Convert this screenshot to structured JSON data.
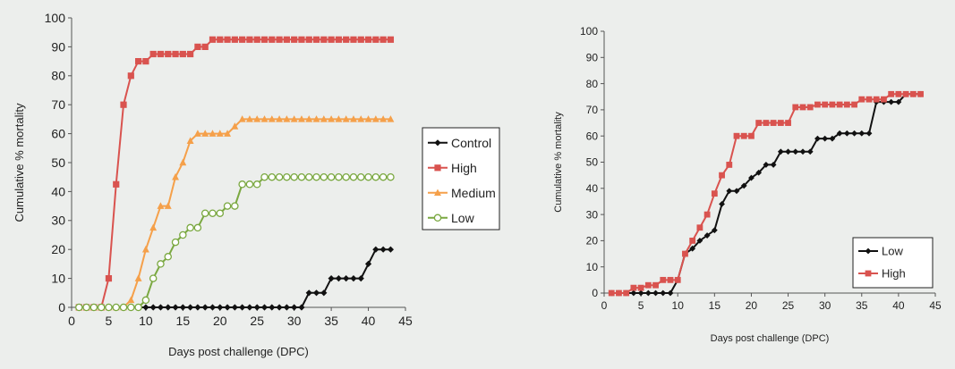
{
  "chart_data": [
    {
      "type": "line",
      "xlabel": "Days post challenge (DPC)",
      "ylabel": "Cumulative % mortality",
      "xlim": [
        0,
        45
      ],
      "ylim": [
        0,
        100
      ],
      "xticks": [
        0,
        5,
        10,
        15,
        20,
        25,
        30,
        35,
        40,
        45
      ],
      "yticks": [
        0,
        10,
        20,
        30,
        40,
        50,
        60,
        70,
        80,
        90,
        100
      ],
      "legend_position": "right",
      "series": [
        {
          "name": "Control",
          "color": "#111111",
          "marker": "diamond",
          "x": [
            1,
            2,
            3,
            4,
            5,
            6,
            7,
            8,
            9,
            10,
            11,
            12,
            13,
            14,
            15,
            16,
            17,
            18,
            19,
            20,
            21,
            22,
            23,
            24,
            25,
            26,
            27,
            28,
            29,
            30,
            31,
            32,
            33,
            34,
            35,
            36,
            37,
            38,
            39,
            40,
            41,
            42,
            43
          ],
          "y": [
            0,
            0,
            0,
            0,
            0,
            0,
            0,
            0,
            0,
            0,
            0,
            0,
            0,
            0,
            0,
            0,
            0,
            0,
            0,
            0,
            0,
            0,
            0,
            0,
            0,
            0,
            0,
            0,
            0,
            0,
            0,
            5,
            5,
            5,
            10,
            10,
            10,
            10,
            10,
            15,
            20,
            20,
            20
          ]
        },
        {
          "name": "High",
          "color": "#d9534f",
          "marker": "square",
          "x": [
            1,
            2,
            3,
            4,
            5,
            6,
            7,
            8,
            9,
            10,
            11,
            12,
            13,
            14,
            15,
            16,
            17,
            18,
            19,
            20,
            21,
            22,
            23,
            24,
            25,
            26,
            27,
            28,
            29,
            30,
            31,
            32,
            33,
            34,
            35,
            36,
            37,
            38,
            39,
            40,
            41,
            42,
            43
          ],
          "y": [
            0,
            0,
            0,
            0,
            10,
            42.5,
            70,
            80,
            85,
            85,
            87.5,
            87.5,
            87.5,
            87.5,
            87.5,
            87.5,
            90,
            90,
            92.5,
            92.5,
            92.5,
            92.5,
            92.5,
            92.5,
            92.5,
            92.5,
            92.5,
            92.5,
            92.5,
            92.5,
            92.5,
            92.5,
            92.5,
            92.5,
            92.5,
            92.5,
            92.5,
            92.5,
            92.5,
            92.5,
            92.5,
            92.5,
            92.5
          ]
        },
        {
          "name": "Medium",
          "color": "#f5a04a",
          "marker": "triangle",
          "x": [
            1,
            2,
            3,
            4,
            5,
            6,
            7,
            8,
            9,
            10,
            11,
            12,
            13,
            14,
            15,
            16,
            17,
            18,
            19,
            20,
            21,
            22,
            23,
            24,
            25,
            26,
            27,
            28,
            29,
            30,
            31,
            32,
            33,
            34,
            35,
            36,
            37,
            38,
            39,
            40,
            41,
            42,
            43
          ],
          "y": [
            0,
            0,
            0,
            0,
            0,
            0,
            0,
            2.5,
            10,
            20,
            27.5,
            35,
            35,
            45,
            50,
            57.5,
            60,
            60,
            60,
            60,
            60,
            62.5,
            65,
            65,
            65,
            65,
            65,
            65,
            65,
            65,
            65,
            65,
            65,
            65,
            65,
            65,
            65,
            65,
            65,
            65,
            65,
            65,
            65
          ]
        },
        {
          "name": "Low",
          "color": "#7aa840",
          "marker": "circle",
          "x": [
            1,
            2,
            3,
            4,
            5,
            6,
            7,
            8,
            9,
            10,
            11,
            12,
            13,
            14,
            15,
            16,
            17,
            18,
            19,
            20,
            21,
            22,
            23,
            24,
            25,
            26,
            27,
            28,
            29,
            30,
            31,
            32,
            33,
            34,
            35,
            36,
            37,
            38,
            39,
            40,
            41,
            42,
            43
          ],
          "y": [
            0,
            0,
            0,
            0,
            0,
            0,
            0,
            0,
            0,
            2.5,
            10,
            15,
            17.5,
            22.5,
            25,
            27.5,
            27.5,
            32.5,
            32.5,
            32.5,
            35,
            35,
            42.5,
            42.5,
            42.5,
            45,
            45,
            45,
            45,
            45,
            45,
            45,
            45,
            45,
            45,
            45,
            45,
            45,
            45,
            45,
            45,
            45,
            45
          ]
        }
      ]
    },
    {
      "type": "line",
      "xlabel": "Days post challenge (DPC)",
      "ylabel": "Cumulative % mortality",
      "xlim": [
        0,
        45
      ],
      "ylim": [
        0,
        100
      ],
      "xticks": [
        0,
        5,
        10,
        15,
        20,
        25,
        30,
        35,
        40,
        45
      ],
      "yticks": [
        0,
        10,
        20,
        30,
        40,
        50,
        60,
        70,
        80,
        90,
        100
      ],
      "legend_position": "bottom-right",
      "series": [
        {
          "name": "Low",
          "color": "#111111",
          "marker": "diamond",
          "x": [
            1,
            2,
            3,
            4,
            5,
            6,
            7,
            8,
            9,
            10,
            11,
            12,
            13,
            14,
            15,
            16,
            17,
            18,
            19,
            20,
            21,
            22,
            23,
            24,
            25,
            26,
            27,
            28,
            29,
            30,
            31,
            32,
            33,
            34,
            35,
            36,
            37,
            38,
            39,
            40,
            41,
            42,
            43
          ],
          "y": [
            0,
            0,
            0,
            0,
            0,
            0,
            0,
            0,
            0,
            5,
            15,
            17,
            20,
            22,
            24,
            34,
            39,
            39,
            41,
            44,
            46,
            49,
            49,
            54,
            54,
            54,
            54,
            54,
            59,
            59,
            59,
            61,
            61,
            61,
            61,
            61,
            73,
            73,
            73,
            73,
            76,
            76,
            76
          ]
        },
        {
          "name": "High",
          "color": "#d9534f",
          "marker": "square",
          "x": [
            1,
            2,
            3,
            4,
            5,
            6,
            7,
            8,
            9,
            10,
            11,
            12,
            13,
            14,
            15,
            16,
            17,
            18,
            19,
            20,
            21,
            22,
            23,
            24,
            25,
            26,
            27,
            28,
            29,
            30,
            31,
            32,
            33,
            34,
            35,
            36,
            37,
            38,
            39,
            40,
            41,
            42,
            43
          ],
          "y": [
            0,
            0,
            0,
            2,
            2,
            3,
            3,
            5,
            5,
            5,
            15,
            20,
            25,
            30,
            38,
            45,
            49,
            60,
            60,
            60,
            65,
            65,
            65,
            65,
            65,
            71,
            71,
            71,
            72,
            72,
            72,
            72,
            72,
            72,
            74,
            74,
            74,
            74,
            76,
            76,
            76,
            76,
            76
          ]
        }
      ]
    }
  ]
}
